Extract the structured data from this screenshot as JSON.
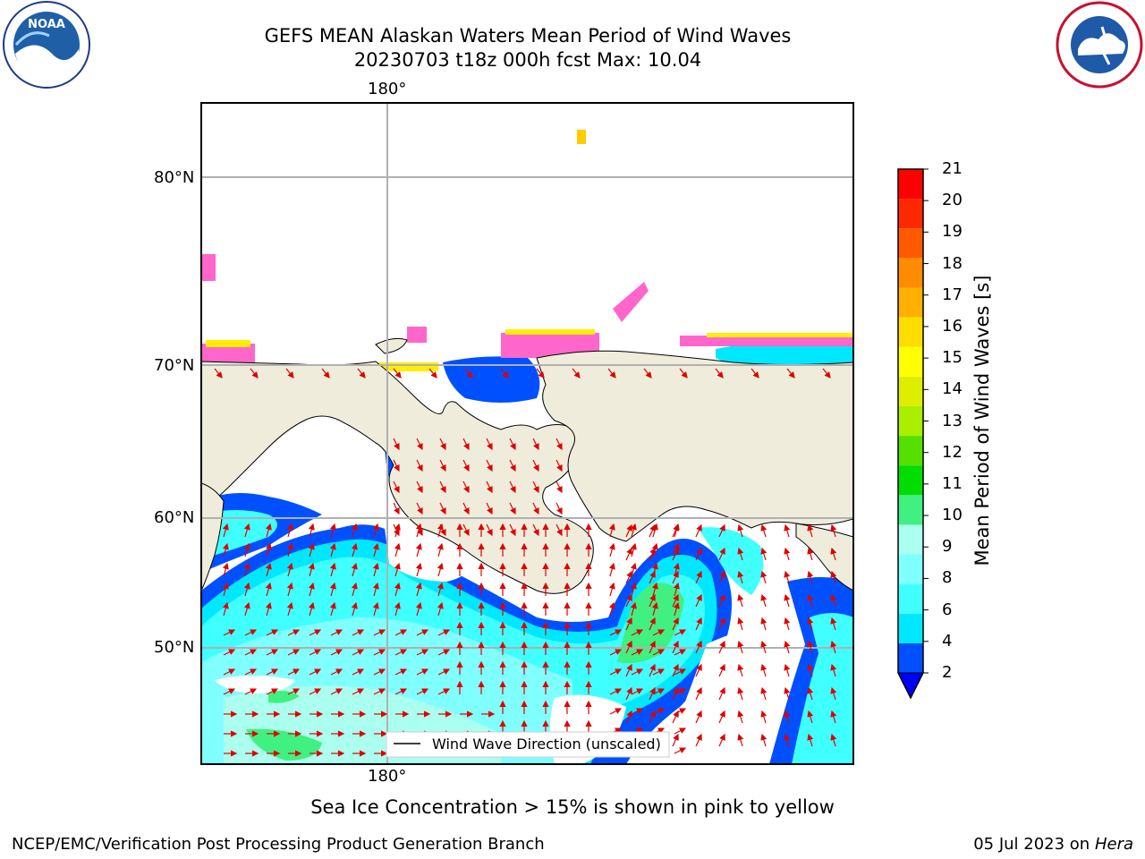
{
  "header": {
    "title_line1": "GEFS MEAN Alaskan Waters Mean Period of Wind Waves",
    "title_line2": "20230703 t18z 000h fcst   Max: 10.04"
  },
  "logos": {
    "left": {
      "text": "NOAA",
      "ring_text": "NATIONAL OCEANIC AND ATMOSPHERIC ADMINISTRATION · U.S. DEPARTMENT OF COMMERCE"
    },
    "right": {
      "ring_text": "NATIONAL WEATHER SERVICE"
    }
  },
  "map": {
    "top_lon_label": "180°",
    "bottom_lon_label": "180°",
    "lat_labels": [
      "80°N",
      "70°N",
      "60°N",
      "50°N"
    ],
    "legend_label": "Wind Wave Direction (unscaled)",
    "colors": {
      "land": "#efecdc",
      "ice_pink": "#ff66cc",
      "ice_yellow": "#ffee00",
      "arrow": "#e00000",
      "grid": "#b0b0b0"
    }
  },
  "colorbar": {
    "label": "Mean Period of Wind Waves [s]",
    "ticks": [
      "21",
      "20",
      "19",
      "18",
      "17",
      "16",
      "15",
      "14",
      "13",
      "12",
      "11",
      "10",
      "9",
      "8",
      "6",
      "4",
      "2"
    ],
    "colors": [
      "#0050ff",
      "#00e8ff",
      "#40ffff",
      "#80ffff",
      "#aaffee",
      "#40f080",
      "#00dd00",
      "#55e000",
      "#aaee00",
      "#ddee00",
      "#ffff00",
      "#ffdd00",
      "#ffb000",
      "#ff8c00",
      "#ff5a00",
      "#ff2800",
      "#ff0000"
    ],
    "extend_color": "#0000ff"
  },
  "notes": {
    "ice_note": "Sea Ice Concentration > 15% is shown in pink to yellow"
  },
  "footer": {
    "left": "NCEP/EMC/Verification Post Processing Product Generation Branch",
    "right_prefix": "05 Jul 2023 on ",
    "right_host": "Hera"
  }
}
